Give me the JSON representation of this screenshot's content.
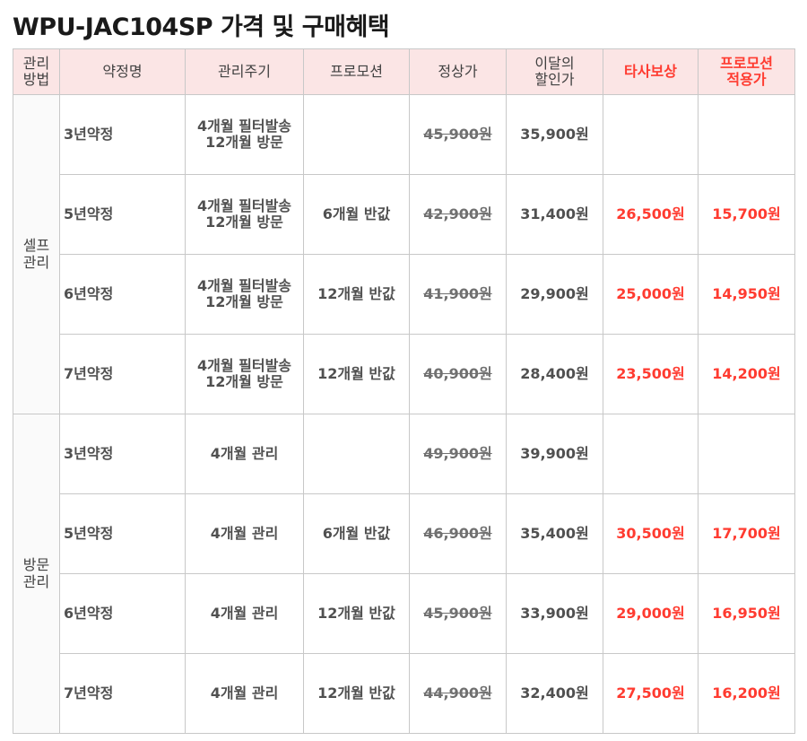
{
  "title": "WPU-JAC104SP 가격 및 구매혜택",
  "table": {
    "headers": [
      {
        "lines": [
          "관리",
          "방법"
        ]
      },
      {
        "lines": [
          "약정명"
        ]
      },
      {
        "lines": [
          "관리주기"
        ]
      },
      {
        "lines": [
          "프로모션"
        ]
      },
      {
        "lines": [
          "정상가"
        ]
      },
      {
        "lines": [
          "이달의",
          "할인가"
        ]
      },
      {
        "lines": [
          "타사보상"
        ]
      },
      {
        "lines": [
          "프로모션",
          "적용가"
        ]
      }
    ],
    "groups": [
      {
        "method": [
          "셀프",
          "관리"
        ],
        "rows": [
          {
            "plan": "3년약정",
            "cycle": [
              "4개월 필터발송",
              "12개월 방문"
            ],
            "promo": "",
            "regular": "45,900원",
            "discount": "35,900원",
            "tradein": "",
            "promo_price": ""
          },
          {
            "plan": "5년약정",
            "cycle": [
              "4개월 필터발송",
              "12개월 방문"
            ],
            "promo": "6개월 반값",
            "regular": "42,900원",
            "discount": "31,400원",
            "tradein": "26,500원",
            "promo_price": "15,700원"
          },
          {
            "plan": "6년약정",
            "cycle": [
              "4개월 필터발송",
              "12개월 방문"
            ],
            "promo": "12개월 반값",
            "regular": "41,900원",
            "discount": "29,900원",
            "tradein": "25,000원",
            "promo_price": "14,950원"
          },
          {
            "plan": "7년약정",
            "cycle": [
              "4개월 필터발송",
              "12개월 방문"
            ],
            "promo": "12개월 반값",
            "regular": "40,900원",
            "discount": "28,400원",
            "tradein": "23,500원",
            "promo_price": "14,200원"
          }
        ]
      },
      {
        "method": [
          "방문",
          "관리"
        ],
        "rows": [
          {
            "plan": "3년약정",
            "cycle": [
              "4개월 관리"
            ],
            "promo": "",
            "regular": "49,900원",
            "discount": "39,900원",
            "tradein": "",
            "promo_price": ""
          },
          {
            "plan": "5년약정",
            "cycle": [
              "4개월 관리"
            ],
            "promo": "6개월 반값",
            "regular": "46,900원",
            "discount": "35,400원",
            "tradein": "30,500원",
            "promo_price": "17,700원"
          },
          {
            "plan": "6년약정",
            "cycle": [
              "4개월 관리"
            ],
            "promo": "12개월 반값",
            "regular": "45,900원",
            "discount": "33,900원",
            "tradein": "29,000원",
            "promo_price": "16,950원"
          },
          {
            "plan": "7년약정",
            "cycle": [
              "4개월 관리"
            ],
            "promo": "12개월 반값",
            "regular": "44,900원",
            "discount": "32,400원",
            "tradein": "27,500원",
            "promo_price": "16,200원"
          }
        ]
      }
    ]
  },
  "colors": {
    "header_bg": "#fbe5e5",
    "accent_red": "#ff3b30",
    "border": "#c8c8c8"
  }
}
